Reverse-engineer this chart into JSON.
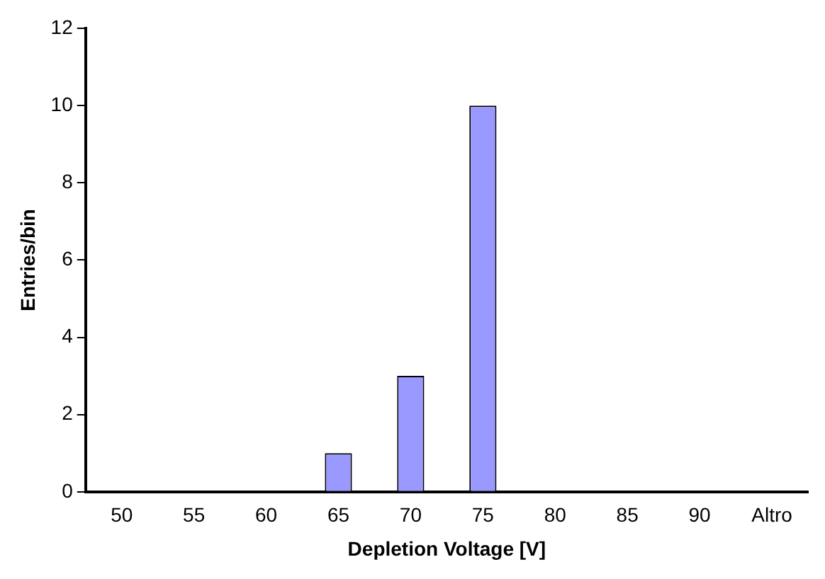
{
  "chart_data": {
    "type": "bar",
    "xlabel": "Depletion Voltage [V]",
    "ylabel": "Entries/bin",
    "categories": [
      "50",
      "55",
      "60",
      "65",
      "70",
      "75",
      "80",
      "85",
      "90",
      "Altro"
    ],
    "values": [
      0,
      0,
      0,
      1,
      3,
      10,
      0,
      0,
      0,
      0
    ],
    "color": "#9999ff",
    "ylim": [
      0,
      12
    ],
    "yticks": [
      0,
      2,
      4,
      6,
      8,
      10,
      12
    ],
    "grid": false,
    "legend": false
  }
}
